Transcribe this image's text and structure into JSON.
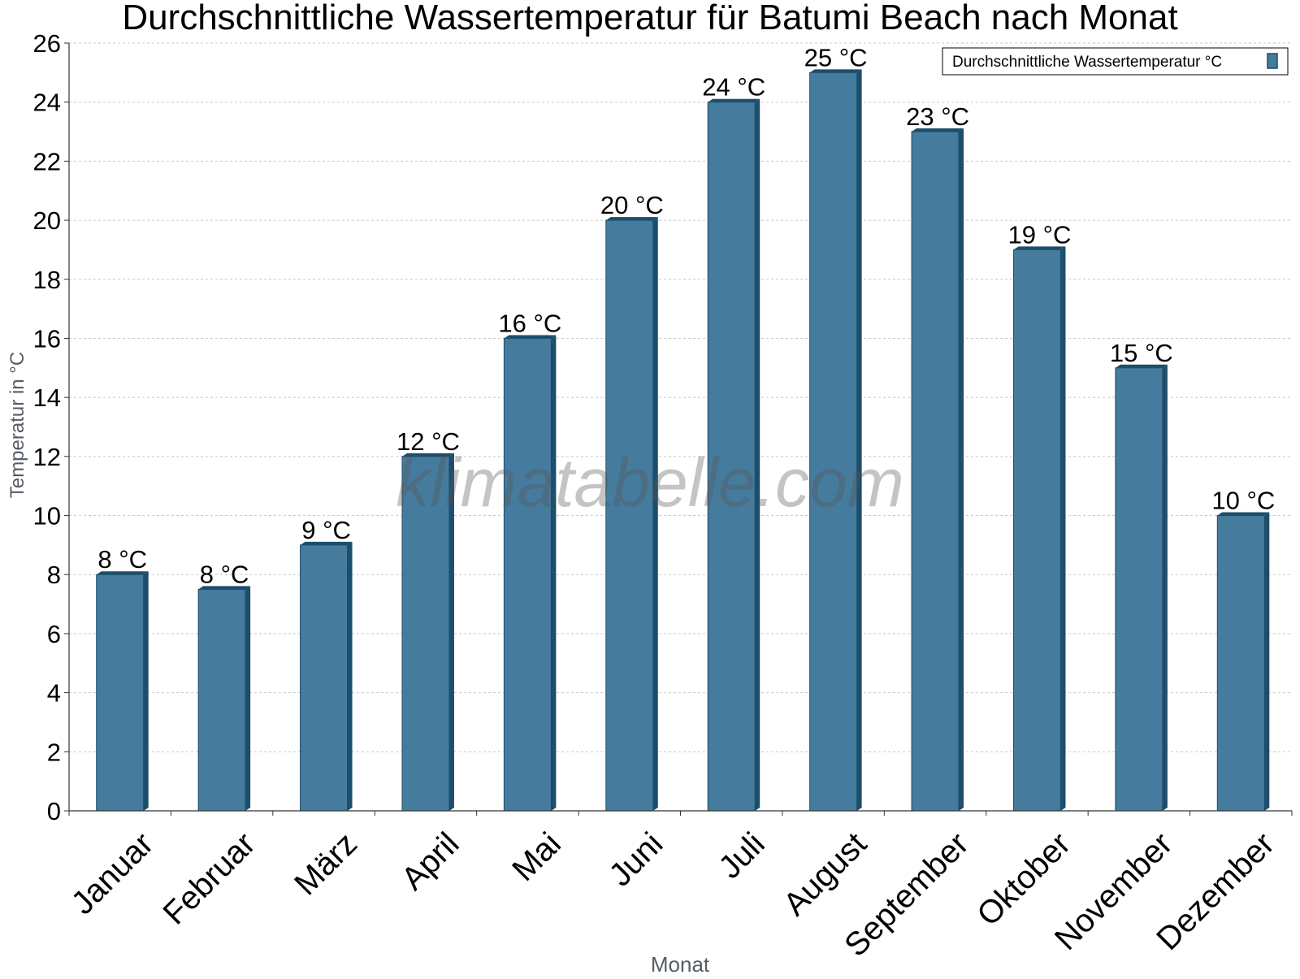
{
  "chart_data": {
    "type": "bar",
    "title": "Durchschnittliche Wassertemperatur für Batumi Beach nach Monat",
    "xlabel": "Monat",
    "ylabel": "Temperatur in °C",
    "ylim": [
      0,
      26
    ],
    "yticks": [
      0,
      2,
      4,
      6,
      8,
      10,
      12,
      14,
      16,
      18,
      20,
      22,
      24,
      26
    ],
    "grid": true,
    "legend_position": "top-right",
    "categories": [
      "Januar",
      "Februar",
      "März",
      "April",
      "Mai",
      "Juni",
      "Juli",
      "August",
      "September",
      "Oktober",
      "November",
      "Dezember"
    ],
    "series": [
      {
        "name": "Durchschnittliche Wassertemperatur °C",
        "values": [
          8,
          7.5,
          9,
          12,
          16,
          20,
          24,
          25,
          23,
          19,
          15,
          10
        ],
        "labels": [
          "8 °C",
          "8 °C",
          "9 °C",
          "12 °C",
          "16 °C",
          "20 °C",
          "24 °C",
          "25 °C",
          "23 °C",
          "19 °C",
          "15 °C",
          "10 °C"
        ]
      }
    ],
    "colors": {
      "bar": "#457b9d",
      "bar_side": "#1d4e6b",
      "axis": "#333333",
      "grid": "#c8c8c8",
      "title": "#000000",
      "axis_label": "#555c66"
    },
    "watermark": "klimatabelle.com"
  }
}
